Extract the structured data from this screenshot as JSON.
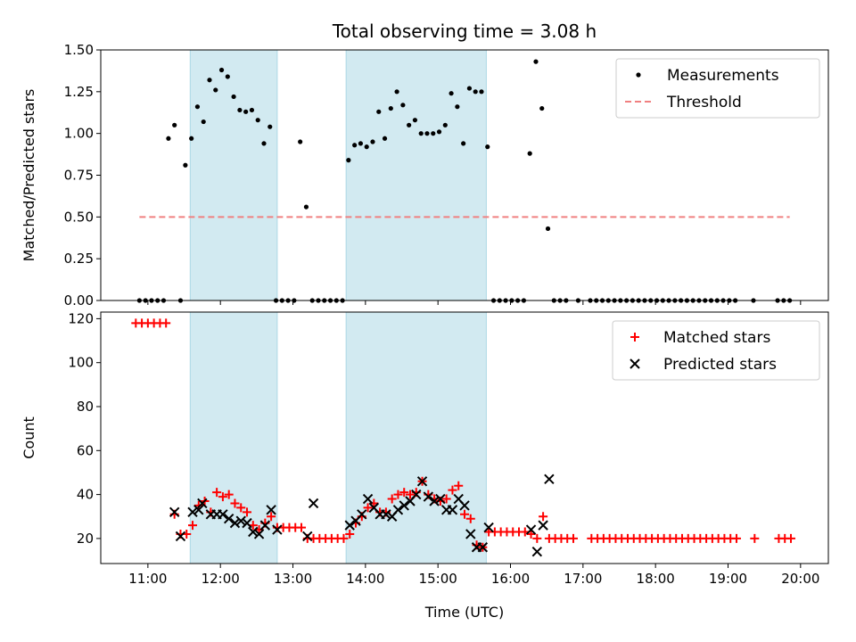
{
  "chart_data": [
    {
      "type": "scatter",
      "title": "Total observing time = 3.08 h",
      "xlabel": "",
      "ylabel": "Matched/Predicted stars",
      "ylim": [
        0,
        1.5
      ],
      "xlim": [
        "10:21",
        "20:23"
      ],
      "yticks": [
        "0.00",
        "0.25",
        "0.50",
        "0.75",
        "1.00",
        "1.25",
        "1.50"
      ],
      "shaded_intervals": [
        [
          "11:35",
          "12:47"
        ],
        [
          "13:44",
          "15:40"
        ]
      ],
      "shade_color": "#add8e6",
      "grid": false,
      "legend": {
        "location": "top-right",
        "entries": [
          "Measurements",
          "Threshold"
        ]
      },
      "series": [
        {
          "name": "Measurements",
          "marker": "dot",
          "color": "#000000",
          "points": [
            [
              "10:53",
              0
            ],
            [
              "10:58",
              0
            ],
            [
              "11:03",
              0
            ],
            [
              "11:08",
              0
            ],
            [
              "11:13",
              0
            ],
            [
              "11:17",
              0.97
            ],
            [
              "11:22",
              1.05
            ],
            [
              "11:27",
              0
            ],
            [
              "11:31",
              0.81
            ],
            [
              "11:36",
              0.97
            ],
            [
              "11:41",
              1.16
            ],
            [
              "11:46",
              1.07
            ],
            [
              "11:51",
              1.32
            ],
            [
              "11:56",
              1.26
            ],
            [
              "12:01",
              1.38
            ],
            [
              "12:06",
              1.34
            ],
            [
              "12:11",
              1.22
            ],
            [
              "12:16",
              1.14
            ],
            [
              "12:21",
              1.13
            ],
            [
              "12:26",
              1.14
            ],
            [
              "12:31",
              1.08
            ],
            [
              "12:36",
              0.94
            ],
            [
              "12:41",
              1.04
            ],
            [
              "12:46",
              0
            ],
            [
              "12:51",
              0
            ],
            [
              "12:56",
              0
            ],
            [
              "13:01",
              0
            ],
            [
              "13:06",
              0.95
            ],
            [
              "13:11",
              0.56
            ],
            [
              "13:16",
              0
            ],
            [
              "13:21",
              0
            ],
            [
              "13:26",
              0
            ],
            [
              "13:31",
              0
            ],
            [
              "13:36",
              0
            ],
            [
              "13:41",
              0
            ],
            [
              "13:46",
              0.84
            ],
            [
              "13:51",
              0.93
            ],
            [
              "13:56",
              0.94
            ],
            [
              "14:01",
              0.92
            ],
            [
              "14:06",
              0.95
            ],
            [
              "14:11",
              1.13
            ],
            [
              "14:16",
              0.97
            ],
            [
              "14:21",
              1.15
            ],
            [
              "14:26",
              1.25
            ],
            [
              "14:31",
              1.17
            ],
            [
              "14:36",
              1.05
            ],
            [
              "14:41",
              1.08
            ],
            [
              "14:46",
              1.0
            ],
            [
              "14:51",
              1.0
            ],
            [
              "14:56",
              1.0
            ],
            [
              "15:01",
              1.01
            ],
            [
              "15:06",
              1.05
            ],
            [
              "15:11",
              1.24
            ],
            [
              "15:16",
              1.16
            ],
            [
              "15:21",
              0.94
            ],
            [
              "15:26",
              1.27
            ],
            [
              "15:31",
              1.25
            ],
            [
              "15:36",
              1.25
            ],
            [
              "15:41",
              0.92
            ],
            [
              "15:46",
              0
            ],
            [
              "15:51",
              0
            ],
            [
              "15:56",
              0
            ],
            [
              "16:01",
              0
            ],
            [
              "16:06",
              0
            ],
            [
              "16:11",
              0
            ],
            [
              "16:16",
              0.88
            ],
            [
              "16:21",
              1.43
            ],
            [
              "16:26",
              1.15
            ],
            [
              "16:31",
              0.43
            ],
            [
              "16:36",
              0
            ],
            [
              "16:41",
              0
            ],
            [
              "16:46",
              0
            ],
            [
              "16:56",
              0
            ],
            [
              "17:06",
              0
            ],
            [
              "17:11",
              0
            ],
            [
              "17:16",
              0
            ],
            [
              "17:21",
              0
            ],
            [
              "17:26",
              0
            ],
            [
              "17:31",
              0
            ],
            [
              "17:36",
              0
            ],
            [
              "17:41",
              0
            ],
            [
              "17:46",
              0
            ],
            [
              "17:51",
              0
            ],
            [
              "17:56",
              0
            ],
            [
              "18:01",
              0
            ],
            [
              "18:06",
              0
            ],
            [
              "18:11",
              0
            ],
            [
              "18:16",
              0
            ],
            [
              "18:21",
              0
            ],
            [
              "18:26",
              0
            ],
            [
              "18:31",
              0
            ],
            [
              "18:36",
              0
            ],
            [
              "18:41",
              0
            ],
            [
              "18:46",
              0
            ],
            [
              "18:51",
              0
            ],
            [
              "18:56",
              0
            ],
            [
              "19:01",
              0
            ],
            [
              "19:06",
              0
            ],
            [
              "19:21",
              0
            ],
            [
              "19:41",
              0
            ],
            [
              "19:46",
              0
            ],
            [
              "19:51",
              0
            ]
          ]
        },
        {
          "name": "Threshold",
          "marker": "dashed-line",
          "color": "#f08080",
          "points": [
            [
              "10:53",
              0.5
            ],
            [
              "19:51",
              0.5
            ]
          ]
        }
      ]
    },
    {
      "type": "scatter",
      "title": "",
      "xlabel": "Time (UTC)",
      "ylabel": "Count",
      "ylim": [
        8.6,
        123
      ],
      "xlim": [
        "10:21",
        "20:23"
      ],
      "yticks": [
        "20",
        "40",
        "60",
        "80",
        "100",
        "120"
      ],
      "xticks": [
        "11:00",
        "12:00",
        "13:00",
        "14:00",
        "15:00",
        "16:00",
        "17:00",
        "18:00",
        "19:00",
        "20:00"
      ],
      "shaded_intervals": [
        [
          "11:35",
          "12:47"
        ],
        [
          "13:44",
          "15:40"
        ]
      ],
      "shade_color": "#add8e6",
      "grid": false,
      "legend": {
        "location": "top-right",
        "entries": [
          "Matched stars",
          "Predicted stars"
        ]
      },
      "series": [
        {
          "name": "Matched stars",
          "marker": "plus",
          "color": "#ff0000",
          "points": [
            [
              "10:50",
              118
            ],
            [
              "10:55",
              118
            ],
            [
              "11:00",
              118
            ],
            [
              "11:05",
              118
            ],
            [
              "11:10",
              118
            ],
            [
              "11:15",
              118
            ],
            [
              "11:22",
              31
            ],
            [
              "11:27",
              22
            ],
            [
              "11:32",
              22
            ],
            [
              "11:37",
              26
            ],
            [
              "11:42",
              35
            ],
            [
              "11:47",
              37
            ],
            [
              "11:52",
              32
            ],
            [
              "11:57",
              41
            ],
            [
              "12:02",
              39
            ],
            [
              "12:07",
              40
            ],
            [
              "12:12",
              36
            ],
            [
              "12:17",
              34
            ],
            [
              "12:22",
              32
            ],
            [
              "12:27",
              26
            ],
            [
              "12:32",
              24
            ],
            [
              "12:37",
              27
            ],
            [
              "12:42",
              30
            ],
            [
              "12:47",
              25
            ],
            [
              "12:52",
              25
            ],
            [
              "12:57",
              25
            ],
            [
              "13:02",
              25
            ],
            [
              "13:07",
              25
            ],
            [
              "13:12",
              20
            ],
            [
              "13:17",
              20
            ],
            [
              "13:22",
              20
            ],
            [
              "13:27",
              20
            ],
            [
              "13:32",
              20
            ],
            [
              "13:37",
              20
            ],
            [
              "13:42",
              20
            ],
            [
              "13:47",
              22
            ],
            [
              "13:52",
              27
            ],
            [
              "13:57",
              30
            ],
            [
              "14:02",
              34
            ],
            [
              "14:07",
              36
            ],
            [
              "14:12",
              32
            ],
            [
              "14:17",
              32
            ],
            [
              "14:22",
              38
            ],
            [
              "14:27",
              40
            ],
            [
              "14:32",
              41
            ],
            [
              "14:37",
              40
            ],
            [
              "14:42",
              41
            ],
            [
              "14:47",
              46
            ],
            [
              "14:52",
              40
            ],
            [
              "14:57",
              38
            ],
            [
              "15:02",
              37
            ],
            [
              "15:07",
              38
            ],
            [
              "15:12",
              42
            ],
            [
              "15:17",
              44
            ],
            [
              "15:22",
              31
            ],
            [
              "15:27",
              29
            ],
            [
              "15:32",
              17
            ],
            [
              "15:37",
              16
            ],
            [
              "15:42",
              23
            ],
            [
              "15:47",
              23
            ],
            [
              "15:52",
              23
            ],
            [
              "15:57",
              23
            ],
            [
              "16:02",
              23
            ],
            [
              "16:07",
              23
            ],
            [
              "16:12",
              23
            ],
            [
              "16:17",
              22
            ],
            [
              "16:22",
              20
            ],
            [
              "16:27",
              30
            ],
            [
              "16:32",
              20
            ],
            [
              "16:37",
              20
            ],
            [
              "16:42",
              20
            ],
            [
              "16:47",
              20
            ],
            [
              "16:52",
              20
            ],
            [
              "17:07",
              20
            ],
            [
              "17:12",
              20
            ],
            [
              "17:17",
              20
            ],
            [
              "17:22",
              20
            ],
            [
              "17:27",
              20
            ],
            [
              "17:32",
              20
            ],
            [
              "17:37",
              20
            ],
            [
              "17:42",
              20
            ],
            [
              "17:47",
              20
            ],
            [
              "17:52",
              20
            ],
            [
              "17:57",
              20
            ],
            [
              "18:02",
              20
            ],
            [
              "18:07",
              20
            ],
            [
              "18:12",
              20
            ],
            [
              "18:17",
              20
            ],
            [
              "18:22",
              20
            ],
            [
              "18:27",
              20
            ],
            [
              "18:32",
              20
            ],
            [
              "18:37",
              20
            ],
            [
              "18:42",
              20
            ],
            [
              "18:47",
              20
            ],
            [
              "18:52",
              20
            ],
            [
              "18:57",
              20
            ],
            [
              "19:02",
              20
            ],
            [
              "19:07",
              20
            ],
            [
              "19:22",
              20
            ],
            [
              "19:42",
              20
            ],
            [
              "19:47",
              20
            ],
            [
              "19:52",
              20
            ]
          ]
        },
        {
          "name": "Predicted stars",
          "marker": "x",
          "color": "#000000",
          "points": [
            [
              "11:22",
              32
            ],
            [
              "11:27",
              21
            ],
            [
              "11:37",
              32
            ],
            [
              "11:42",
              33
            ],
            [
              "11:45",
              36
            ],
            [
              "11:52",
              31
            ],
            [
              "11:57",
              31
            ],
            [
              "12:02",
              31
            ],
            [
              "12:07",
              29
            ],
            [
              "12:12",
              27
            ],
            [
              "12:17",
              28
            ],
            [
              "12:22",
              27
            ],
            [
              "12:27",
              23
            ],
            [
              "12:32",
              22
            ],
            [
              "12:37",
              26
            ],
            [
              "12:42",
              33
            ],
            [
              "12:47",
              24
            ],
            [
              "13:12",
              21
            ],
            [
              "13:17",
              36
            ],
            [
              "13:47",
              26
            ],
            [
              "13:52",
              28
            ],
            [
              "13:57",
              31
            ],
            [
              "14:02",
              38
            ],
            [
              "14:07",
              34
            ],
            [
              "14:12",
              31
            ],
            [
              "14:17",
              31
            ],
            [
              "14:22",
              30
            ],
            [
              "14:27",
              33
            ],
            [
              "14:32",
              35
            ],
            [
              "14:37",
              37
            ],
            [
              "14:42",
              40
            ],
            [
              "14:47",
              46
            ],
            [
              "14:52",
              39
            ],
            [
              "14:57",
              37
            ],
            [
              "15:02",
              38
            ],
            [
              "15:07",
              33
            ],
            [
              "15:12",
              33
            ],
            [
              "15:17",
              38
            ],
            [
              "15:22",
              35
            ],
            [
              "15:27",
              22
            ],
            [
              "15:32",
              16
            ],
            [
              "15:37",
              16
            ],
            [
              "15:42",
              25
            ],
            [
              "16:17",
              24
            ],
            [
              "16:22",
              14
            ],
            [
              "16:27",
              26
            ],
            [
              "16:32",
              47
            ]
          ]
        }
      ]
    }
  ]
}
